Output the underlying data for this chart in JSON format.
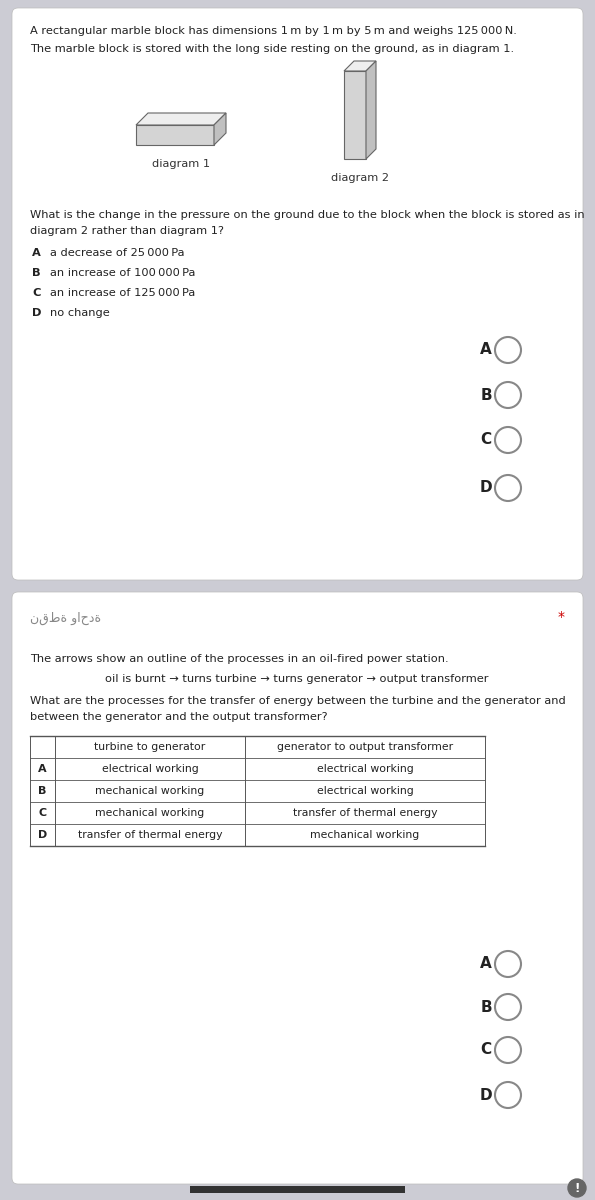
{
  "bg_outer": "#ccccd4",
  "bg_card": "#ffffff",
  "card1": {
    "intro_line1": "A rectangular marble block has dimensions 1 m by 1 m by 5 m and weighs 125 000 N.",
    "intro_line2": "The marble block is stored with the long side resting on the ground, as in diagram 1.",
    "diag1_label": "diagram 1",
    "diag2_label": "diagram 2",
    "question_line1": "What is the change in the pressure on the ground due to the block when the block is stored as in",
    "question_line2": "diagram 2 rather than diagram 1?",
    "options": [
      [
        "A",
        "a decrease of 25 000 Pa"
      ],
      [
        "B",
        "an increase of 100 000 Pa"
      ],
      [
        "C",
        "an increase of 125 000 Pa"
      ],
      [
        "D",
        "no change"
      ]
    ],
    "radio_labels": [
      "A",
      "B",
      "C",
      "D"
    ]
  },
  "card2": {
    "arabic_text": "نقطة واحدة",
    "star": "*",
    "intro": "The arrows show an outline of the processes in an oil-fired power station.",
    "process_line": "oil is burnt → turns turbine → turns generator → output transformer",
    "question_line1": "What are the processes for the transfer of energy between the turbine and the generator and",
    "question_line2": "between the generator and the output transformer?",
    "col1_header": "turbine to generator",
    "col2_header": "generator to output transformer",
    "table_rows": [
      [
        "A",
        "electrical working",
        "electrical working"
      ],
      [
        "B",
        "mechanical working",
        "electrical working"
      ],
      [
        "C",
        "mechanical working",
        "transfer of thermal energy"
      ],
      [
        "D",
        "transfer of thermal energy",
        "mechanical working"
      ]
    ],
    "radio_labels": [
      "A",
      "B",
      "C",
      "D"
    ]
  }
}
